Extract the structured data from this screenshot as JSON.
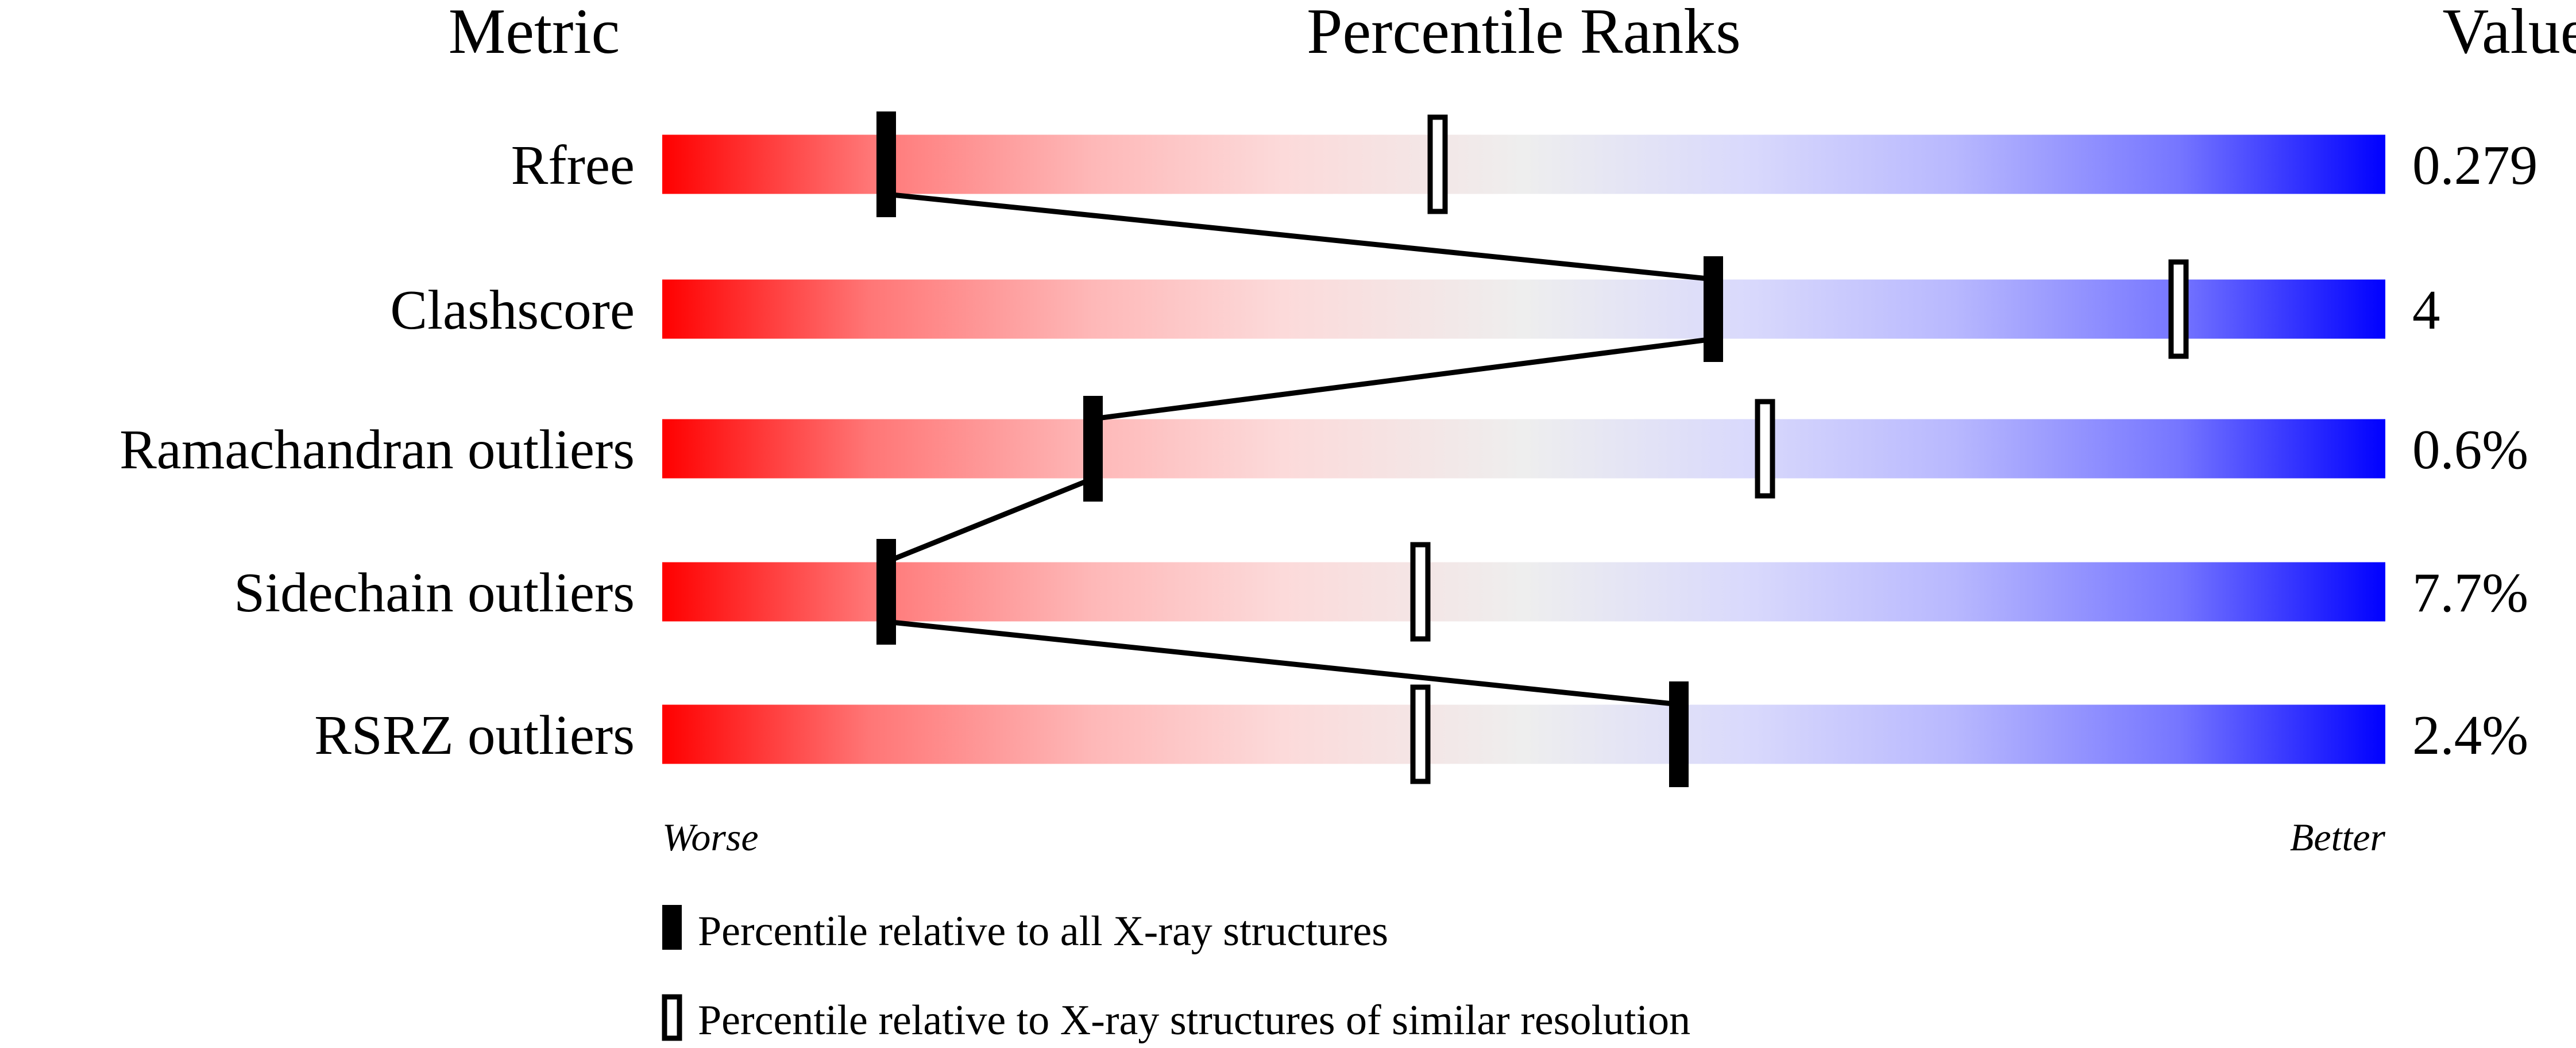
{
  "chart_data": {
    "type": "slider",
    "headers": {
      "metric": "Metric",
      "ranks": "Percentile Ranks",
      "value": "Value"
    },
    "xlim": [
      0,
      100
    ],
    "metrics": [
      {
        "name": "Rfree",
        "value": "0.279",
        "percentile_all": 13,
        "percentile_similar": 45
      },
      {
        "name": "Clashscore",
        "value": "4",
        "percentile_all": 61,
        "percentile_similar": 88
      },
      {
        "name": "Ramachandran outliers",
        "value": "0.6%",
        "percentile_all": 25,
        "percentile_similar": 64
      },
      {
        "name": "Sidechain outliers",
        "value": "7.7%",
        "percentile_all": 13,
        "percentile_similar": 44
      },
      {
        "name": "RSRZ outliers",
        "value": "2.4%",
        "percentile_all": 59,
        "percentile_similar": 44
      }
    ],
    "axis_labels": {
      "left": "Worse",
      "right": "Better"
    },
    "legend": {
      "all": "Percentile relative to all X-ray structures",
      "similar": "Percentile relative to X-ray structures of similar resolution"
    },
    "colors": {
      "worse": "#ff0000",
      "middle": "#eeeeee",
      "better": "#0000ff",
      "marker": "#000000"
    }
  }
}
